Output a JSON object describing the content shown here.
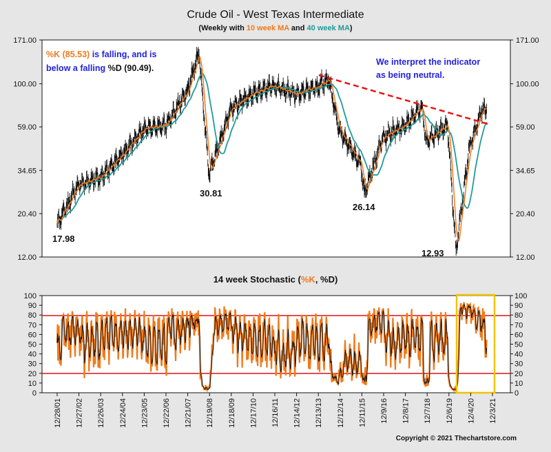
{
  "header": {
    "title": "Crude Oil - West Texas Intermediate",
    "subtitle_parts": [
      {
        "text": "(Weekly with ",
        "color": "#111111"
      },
      {
        "text": "10 week MA",
        "color": "#f07a1c"
      },
      {
        "text": " and ",
        "color": "#111111"
      },
      {
        "text": "40 week MA",
        "color": "#1f9a9a"
      },
      {
        "text": ")",
        "color": "#111111"
      }
    ]
  },
  "annotations": {
    "k_note_line1_parts": [
      {
        "text": "%K (85.53)",
        "color": "#f07a1c"
      },
      {
        "text": " is falling, and is",
        "color": "#2222dd"
      }
    ],
    "k_note_line2_parts": [
      {
        "text": "below a falling ",
        "color": "#2222dd"
      },
      {
        "text": "%D (90.49).",
        "color": "#111111"
      }
    ],
    "interpret_line1": "We interpret the indicator",
    "interpret_line2": "as being neutral.",
    "low_labels": [
      "17.98",
      "30.81",
      "26.14",
      "12.93"
    ]
  },
  "stochastic": {
    "title_parts": [
      {
        "text": "14 week Stochastic (",
        "color": "#111111"
      },
      {
        "text": "%K",
        "color": "#f07a1c"
      },
      {
        "text": ", %D)",
        "color": "#111111"
      }
    ]
  },
  "copyright": "Copyright © 2021 Thechartstore.com",
  "colors": {
    "price": "#111111",
    "ma10": "#f07a1c",
    "ma40": "#1f9a9a",
    "percent_k": "#f07a1c",
    "percent_d": "#111111",
    "reference_lines": "#dd1111",
    "trendline": "#ee1111",
    "highlight_box": "#f2c200",
    "annotation_blue": "#2222dd"
  },
  "chart_data": [
    {
      "type": "line",
      "title": "Crude Oil - West Texas Intermediate",
      "yscale": "log",
      "ylim": [
        12.0,
        171.0
      ],
      "yticks": [
        "171.00",
        "100.00",
        "59.00",
        "34.65",
        "20.40",
        "12.00"
      ],
      "x_tick_labels": [
        "12/28/01",
        "12/27/02",
        "12/26/03",
        "12/24/04",
        "12/23/05",
        "12/22/06",
        "12/21/07",
        "12/19/08",
        "12/18/09",
        "12/17/10",
        "12/16/11",
        "12/14/12",
        "12/13/13",
        "12/12/14",
        "12/11/15",
        "12/9/16",
        "12/8/17",
        "12/7/18",
        "12/6/19",
        "12/4/20",
        "12/3/21"
      ],
      "series": [
        {
          "name": "",
          "x": [
            "12/28/01",
            "12/27/02",
            "12/26/03",
            "12/24/04",
            "12/23/05",
            "12/22/06",
            "12/21/07",
            "7/4/08",
            "12/19/08",
            "12/18/09",
            "12/17/10",
            "12/16/11",
            "12/14/12",
            "12/13/13",
            "6/20/14",
            "12/12/14",
            "12/11/15",
            "2/12/16",
            "12/9/16",
            "12/8/17",
            "10/5/18",
            "12/7/18",
            "12/6/19",
            "4/24/20",
            "12/4/20",
            "6/25/21",
            "9/24/21"
          ],
          "values": [
            17.98,
            29.5,
            32.0,
            42.0,
            58.0,
            60.0,
            92.0,
            145.0,
            33.0,
            74.0,
            88.0,
            98.0,
            88.0,
            97.0,
            105.0,
            57.0,
            37.0,
            26.14,
            52.0,
            60.0,
            76.0,
            50.0,
            60.0,
            12.93,
            46.0,
            72.0,
            74.0
          ]
        }
      ],
      "annotations": {
        "lows": [
          17.98,
          30.81,
          26.14,
          12.93
        ],
        "trendline": "descending from the 2014 high to the 2021 high"
      }
    },
    {
      "type": "line",
      "title": "14 week Stochastic (%K, %D)",
      "ylim": [
        0,
        100
      ],
      "yticks": [
        0,
        10,
        20,
        30,
        40,
        50,
        60,
        70,
        80,
        90,
        100
      ],
      "reference_lines": [
        20,
        80
      ],
      "series": [
        {
          "name": "%K",
          "current": 85.53
        },
        {
          "name": "%D",
          "current": 90.49
        }
      ]
    }
  ]
}
